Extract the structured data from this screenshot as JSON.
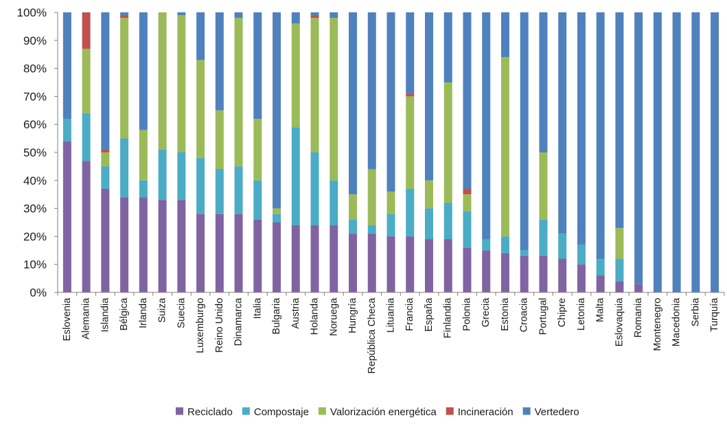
{
  "chart_data": {
    "type": "bar",
    "stacked": true,
    "normalized_percent": true,
    "categories": [
      "Eslovenia",
      "Alemania",
      "Islandia",
      "Bélgica",
      "Irlanda",
      "Suiza",
      "Suecia",
      "Luxemburgo",
      "Reino Unido",
      "Dinamarca",
      "Italia",
      "Bulgaria",
      "Austria",
      "Holanda",
      "Noruega",
      "Hungría",
      "República Checa",
      "Lituania",
      "Francia",
      "España",
      "Finlandia",
      "Polonia",
      "Grecia",
      "Estonia",
      "Croacia",
      "Portugal",
      "Chipre",
      "Letonia",
      "Malta",
      "Eslovaquia",
      "Romania",
      "Montenegro",
      "Macedonia",
      "Serbia",
      "Turquía"
    ],
    "series": [
      {
        "name": "Reciclado",
        "color": "#8064a2",
        "values": [
          54,
          47,
          37,
          34,
          34,
          33,
          33,
          28,
          28,
          28,
          26,
          25,
          24,
          24,
          24,
          21,
          21,
          20,
          20,
          19,
          19,
          16,
          15,
          14,
          13,
          13,
          12,
          10,
          6,
          4,
          3,
          0,
          0,
          0,
          0
        ]
      },
      {
        "name": "Compostaje",
        "color": "#4bacc6",
        "values": [
          8,
          17,
          8,
          21,
          6,
          18,
          17,
          20,
          16,
          17,
          14,
          3,
          35,
          26,
          16,
          5,
          3,
          8,
          17,
          11,
          13,
          13,
          4,
          6,
          2,
          13,
          9,
          7,
          6,
          8,
          0,
          0,
          0,
          0,
          0
        ]
      },
      {
        "name": "Valorización energética",
        "color": "#9bbb59",
        "values": [
          0,
          23,
          5,
          43,
          18,
          49,
          49,
          35,
          21,
          53,
          22,
          2,
          37,
          48,
          58,
          9,
          20,
          8,
          33,
          10,
          43,
          6,
          0,
          64,
          0,
          24,
          0,
          0,
          0,
          11,
          0,
          0,
          0,
          0,
          0
        ]
      },
      {
        "name": "Incineración",
        "color": "#c0504d",
        "values": [
          0,
          13,
          1,
          1,
          0,
          0,
          0,
          0,
          0,
          0,
          0,
          0,
          0,
          1,
          0,
          0,
          0,
          0,
          1,
          0,
          0,
          2,
          0,
          0,
          0,
          0,
          0,
          0,
          0,
          0,
          0,
          0,
          0,
          0,
          0
        ]
      },
      {
        "name": "Vertedero",
        "color": "#4f81bd",
        "values": [
          38,
          0,
          49,
          1,
          42,
          0,
          1,
          17,
          35,
          2,
          38,
          70,
          4,
          1,
          2,
          65,
          56,
          64,
          29,
          60,
          25,
          63,
          81,
          16,
          85,
          50,
          79,
          83,
          88,
          77,
          97,
          100,
          100,
          100,
          100
        ]
      }
    ],
    "yticks": [
      "0%",
      "10%",
      "20%",
      "30%",
      "40%",
      "50%",
      "60%",
      "70%",
      "80%",
      "90%",
      "100%"
    ],
    "ylim": [
      0,
      100
    ],
    "grid": false,
    "legend_position": "bottom"
  }
}
